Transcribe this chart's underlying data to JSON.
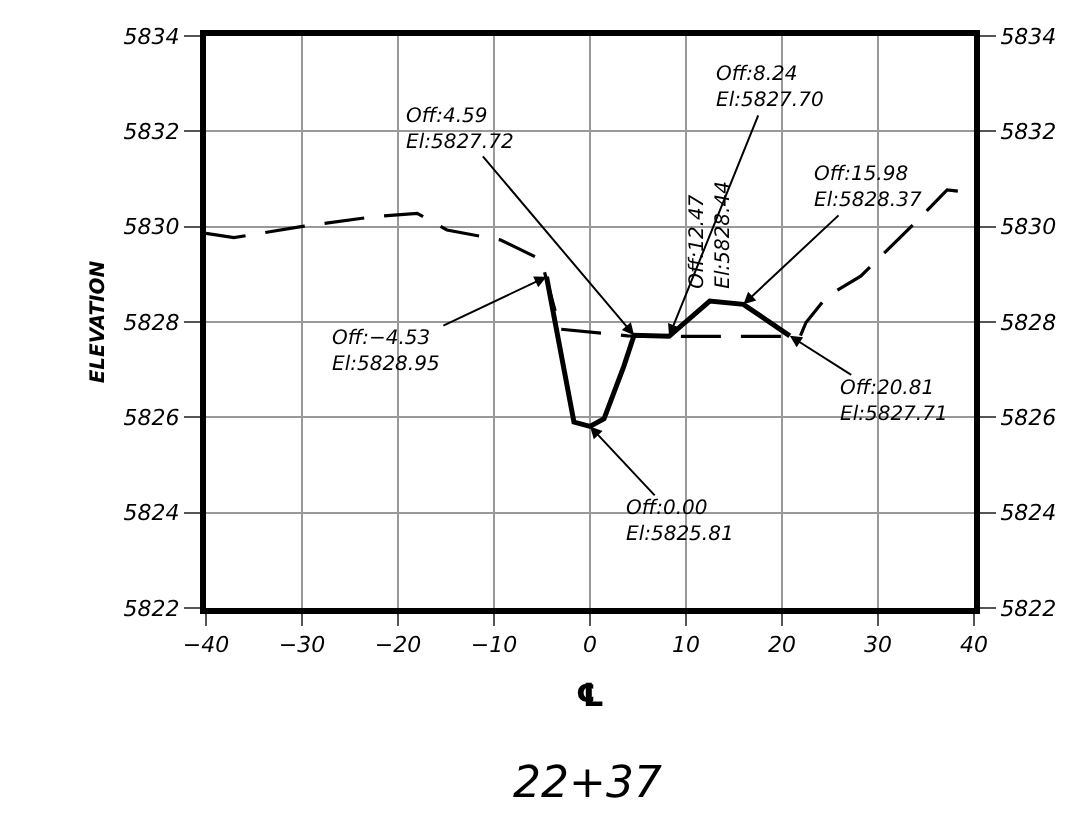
{
  "chart_data": {
    "type": "line",
    "title": "22+37",
    "xlabel": "℄",
    "ylabel": "ELEVATION",
    "xlim": [
      -40,
      40
    ],
    "xticks": [
      -40,
      -30,
      -20,
      -10,
      0,
      10,
      20,
      30,
      40
    ],
    "ylim": [
      5822,
      5834
    ],
    "yticks": [
      5822,
      5824,
      5826,
      5828,
      5830,
      5832,
      5834
    ],
    "y2lim": [
      5822,
      5834
    ],
    "y2ticks": [
      5822,
      5824,
      5826,
      5828,
      5830,
      5832,
      5834
    ],
    "grid": true,
    "series": [
      {
        "color": "#000000",
        "line_style": "dashed",
        "x": [
          -40,
          -37.1,
          -30.1,
          -22.5,
          -18,
          -14.9,
          -9.3,
          -5.1,
          -3.1,
          3.9,
          8,
          14,
          21.9,
          22.5,
          24.7,
          28.2,
          33.8,
          37.2,
          40
        ],
        "values": [
          5829.86,
          5829.77,
          5830.0,
          5830.21,
          5830.28,
          5829.93,
          5829.72,
          5829.31,
          5827.85,
          5827.71,
          5827.7,
          5827.7,
          5827.7,
          5827.99,
          5828.54,
          5828.96,
          5830.07,
          5830.77,
          5830.71
        ]
      },
      {
        "color": "#000000",
        "line_style": "solid",
        "x": [
          -4.53,
          -1.67,
          0,
          1.46,
          3.54,
          4.59,
          8.24,
          12.47,
          15.98,
          20.81
        ],
        "values": [
          5828.95,
          5825.9,
          5825.81,
          5825.97,
          5827.08,
          5827.72,
          5827.7,
          5828.44,
          5828.37,
          5827.71
        ]
      }
    ],
    "annotations": [
      {
        "text": "Off:4.59\nEl:5827.72",
        "x": 4.59,
        "y": 5827.72
      },
      {
        "text": "Off:8.24\nEl:5827.70",
        "x": 8.24,
        "y": 5827.7
      },
      {
        "text": "Off:12.47\nEl:5828.44",
        "x": 12.47,
        "y": 5828.44
      },
      {
        "text": "Off:15.98\nEl:5828.37",
        "x": 15.98,
        "y": 5828.37
      },
      {
        "text": "Off:−4.53\nEl:5828.95",
        "x": -4.53,
        "y": 5828.95
      },
      {
        "text": "Off:20.81\nEl:5827.71",
        "x": 20.81,
        "y": 5827.71
      },
      {
        "text": "Off:0.00\nEl:5825.81",
        "x": 0,
        "y": 5825.81
      }
    ]
  }
}
